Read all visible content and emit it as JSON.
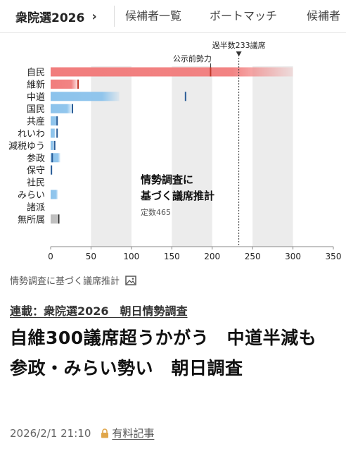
{
  "nav": {
    "main": "衆院選2026",
    "tabs": [
      "候補者一覧",
      "ボートマッチ",
      "候補者"
    ]
  },
  "chart_data": {
    "type": "bar",
    "categories": [
      "自民",
      "維新",
      "中道",
      "国民",
      "共産",
      "れいわ",
      "減税ゆう",
      "参政",
      "保守",
      "社民",
      "みらい",
      "諸派",
      "無所属"
    ],
    "series": [
      {
        "values": [
          300,
          34,
          85,
          27,
          9,
          6,
          4,
          12,
          2,
          0,
          9,
          0,
          10
        ]
      }
    ],
    "markers": {
      "label": "公示前勢力",
      "values": [
        198,
        34,
        167,
        27,
        8,
        8,
        5,
        2,
        1,
        0,
        0,
        0,
        10
      ]
    },
    "majority_line": {
      "label": "過半数233議席",
      "value": 233
    },
    "annotation_title": [
      "情勢調査に",
      "基づく議席推計"
    ],
    "annotation_sub": "定数465",
    "xticks": [
      0,
      50,
      100,
      150,
      200,
      250,
      300,
      350
    ],
    "xlim": [
      0,
      350
    ],
    "bar_colors": [
      "#f17d7d",
      "#f17d7d",
      "#8cc3ec",
      "#8cc3ec",
      "#8cc3ec",
      "#8cc3ec",
      "#8cc3ec",
      "#8cc3ec",
      "#8cc3ec",
      "#8cc3ec",
      "#8cc3ec",
      "#bdbdbd",
      "#bdbdbd"
    ],
    "marker_colors": [
      "#c0392b",
      "#c0392b",
      "#2a5c96",
      "#2a5c96",
      "#2a5c96",
      "#2a5c96",
      "#2a5c96",
      "#2a5c96",
      "#2a5c96",
      "#2a5c96",
      "#2a5c96",
      "#333333",
      "#333333"
    ]
  },
  "caption": "情勢調査に基づく議席推計",
  "article": {
    "series": "連載：衆院選2026　朝日情勢調査",
    "headline": "自維300議席超うかがう　中道半減も　参政・みらい勢い　朝日調査",
    "date": "2026/2/1 21:10",
    "paid_label": "有料記事"
  },
  "colors": {
    "accent_red": "#f17d7d",
    "accent_blue": "#8cc3ec",
    "lock": "#e0a64a"
  }
}
